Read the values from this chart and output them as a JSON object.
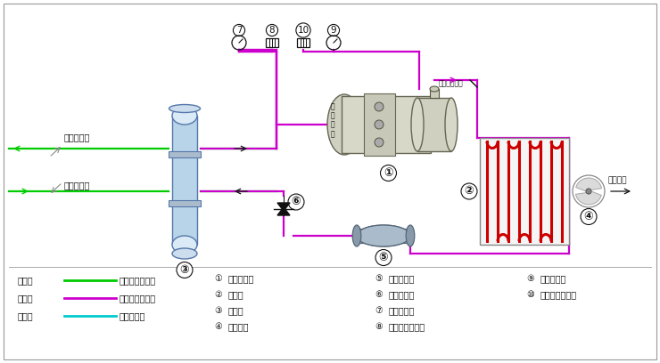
{
  "line_green": "#00cc00",
  "line_magenta": "#cc00cc",
  "line_cyan": "#00cccc",
  "line_red": "#cc0000",
  "line_black": "#111111",
  "legend_items": [
    {
      "label": "绿色线",
      "color": "#00cc00",
      "desc": "载冷剂循环回路"
    },
    {
      "label": "红色线",
      "color": "#cc00cc",
      "desc": "制冷剂循环回路"
    },
    {
      "label": "蓝色线",
      "color": "#00cccc",
      "desc": "水循环回路"
    }
  ],
  "numbered_items_col1": [
    {
      "num": "①",
      "desc": "螺杆压缩机"
    },
    {
      "num": "②",
      "desc": "冷凝器"
    },
    {
      "num": "③",
      "desc": "蒸发器"
    },
    {
      "num": "④",
      "desc": "冷却风扇"
    }
  ],
  "numbered_items_col2": [
    {
      "num": "⑤",
      "desc": "干燥过滤器"
    },
    {
      "num": "⑥",
      "desc": "供液膨胀阀"
    },
    {
      "num": "⑦",
      "desc": "低压压力表"
    },
    {
      "num": "⑧",
      "desc": "低压压力控制器"
    }
  ],
  "numbered_items_col3": [
    {
      "num": "⑨",
      "desc": "高压压力表"
    },
    {
      "num": "⑩",
      "desc": "高压压力控制器"
    }
  ]
}
